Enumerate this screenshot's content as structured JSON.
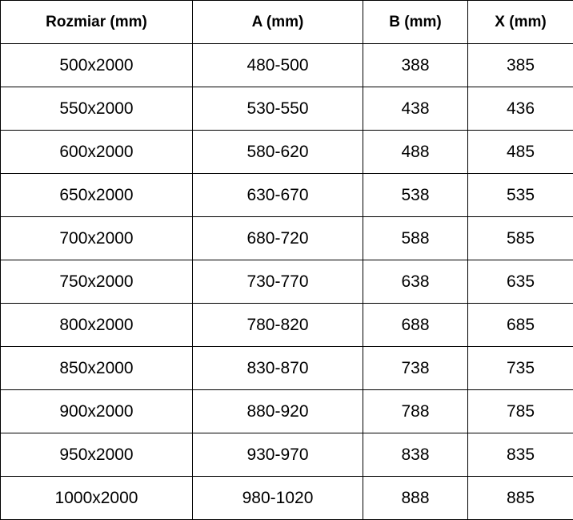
{
  "table": {
    "headers": [
      "Rozmiar (mm)",
      "A (mm)",
      "B (mm)",
      "X (mm)"
    ],
    "rows": [
      [
        "500x2000",
        "480-500",
        "388",
        "385"
      ],
      [
        "550x2000",
        "530-550",
        "438",
        "436"
      ],
      [
        "600x2000",
        "580-620",
        "488",
        "485"
      ],
      [
        "650x2000",
        "630-670",
        "538",
        "535"
      ],
      [
        "700x2000",
        "680-720",
        "588",
        "585"
      ],
      [
        "750x2000",
        "730-770",
        "638",
        "635"
      ],
      [
        "800x2000",
        "780-820",
        "688",
        "685"
      ],
      [
        "850x2000",
        "830-870",
        "738",
        "735"
      ],
      [
        "900x2000",
        "880-920",
        "788",
        "785"
      ],
      [
        "950x2000",
        "930-970",
        "838",
        "835"
      ],
      [
        "1000x2000",
        "980-1020",
        "888",
        "885"
      ]
    ]
  }
}
